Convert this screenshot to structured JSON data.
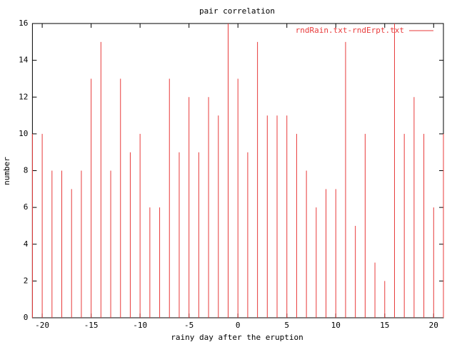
{
  "chart_data": {
    "type": "bar",
    "style": "impulses",
    "title": "pair correlation",
    "x_label": "rainy day after the eruption",
    "y_label": "number",
    "x": [
      -21,
      -20,
      -19,
      -18,
      -17,
      -16,
      -15,
      -14,
      -13,
      -12,
      -11,
      -10,
      -9,
      -8,
      -7,
      -6,
      -5,
      -4,
      -3,
      -2,
      -1,
      0,
      1,
      2,
      3,
      4,
      5,
      6,
      7,
      8,
      9,
      10,
      11,
      12,
      13,
      14,
      15,
      16,
      17,
      18,
      19,
      20,
      21
    ],
    "series": [
      {
        "name": "rndRain.txt-rndErpt.txt",
        "color": "#e83a3a",
        "values": [
          10,
          10,
          8,
          8,
          7,
          8,
          13,
          15,
          8,
          13,
          9,
          10,
          6,
          6,
          13,
          9,
          12,
          9,
          12,
          11,
          16,
          13,
          9,
          15,
          11,
          11,
          11,
          10,
          8,
          6,
          7,
          7,
          15,
          5,
          10,
          3,
          2,
          16,
          10,
          12,
          10,
          6,
          10
        ]
      }
    ],
    "xlim": [
      -21,
      21
    ],
    "ylim": [
      0,
      16
    ],
    "xticks": [
      -20,
      -15,
      -10,
      -5,
      0,
      5,
      10,
      15,
      20
    ],
    "yticks": [
      0,
      2,
      4,
      6,
      8,
      10,
      12,
      14,
      16
    ],
    "legend": "top-right",
    "grid": false
  }
}
